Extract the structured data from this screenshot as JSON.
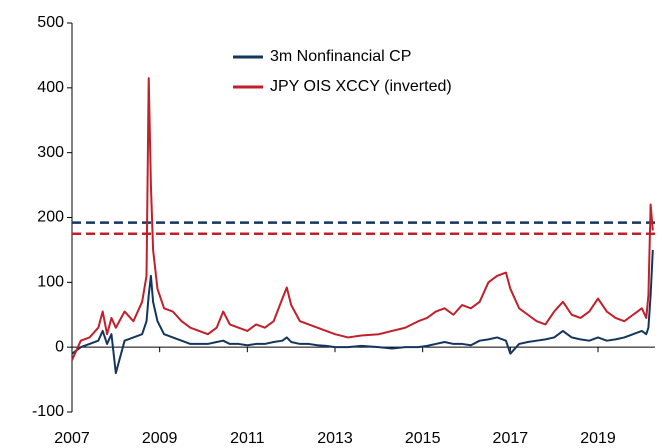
{
  "chart_data": {
    "type": "line",
    "x": [
      2007.0,
      2007.2,
      2007.4,
      2007.6,
      2007.7,
      2007.8,
      2007.9,
      2008.0,
      2008.2,
      2008.4,
      2008.6,
      2008.7,
      2008.75,
      2008.8,
      2008.85,
      2008.95,
      2009.1,
      2009.3,
      2009.5,
      2009.7,
      2009.9,
      2010.1,
      2010.3,
      2010.45,
      2010.6,
      2010.8,
      2011.0,
      2011.2,
      2011.4,
      2011.6,
      2011.8,
      2011.9,
      2012.0,
      2012.2,
      2012.4,
      2012.6,
      2012.8,
      2013.0,
      2013.3,
      2013.6,
      2014.0,
      2014.3,
      2014.6,
      2014.9,
      2015.1,
      2015.3,
      2015.5,
      2015.7,
      2015.9,
      2016.1,
      2016.3,
      2016.5,
      2016.7,
      2016.9,
      2017.0,
      2017.2,
      2017.4,
      2017.6,
      2017.8,
      2018.0,
      2018.2,
      2018.4,
      2018.6,
      2018.8,
      2019.0,
      2019.2,
      2019.4,
      2019.6,
      2019.8,
      2020.0,
      2020.1,
      2020.15,
      2020.2,
      2020.25
    ],
    "series": [
      {
        "name": "3m Nonfinancial CP",
        "color": "#14365e",
        "values": [
          -10,
          0,
          5,
          10,
          25,
          5,
          20,
          -40,
          10,
          15,
          20,
          40,
          80,
          110,
          70,
          40,
          20,
          15,
          10,
          5,
          5,
          5,
          8,
          10,
          5,
          5,
          3,
          5,
          5,
          8,
          10,
          15,
          8,
          5,
          5,
          3,
          2,
          0,
          0,
          2,
          0,
          -2,
          0,
          0,
          2,
          5,
          8,
          5,
          5,
          3,
          10,
          12,
          15,
          10,
          -10,
          5,
          8,
          10,
          12,
          15,
          25,
          15,
          12,
          10,
          15,
          10,
          12,
          15,
          20,
          25,
          20,
          30,
          80,
          150
        ]
      },
      {
        "name": "JPY OIS XCCY (inverted)",
        "color": "#c0202a",
        "values": [
          -20,
          10,
          15,
          30,
          55,
          20,
          45,
          30,
          55,
          40,
          70,
          110,
          415,
          250,
          150,
          90,
          60,
          55,
          40,
          30,
          25,
          20,
          30,
          55,
          35,
          30,
          25,
          35,
          30,
          40,
          75,
          92,
          65,
          40,
          35,
          30,
          25,
          20,
          15,
          18,
          20,
          25,
          30,
          40,
          45,
          55,
          60,
          50,
          65,
          60,
          70,
          100,
          110,
          115,
          90,
          60,
          50,
          40,
          35,
          55,
          70,
          50,
          45,
          55,
          75,
          55,
          45,
          40,
          50,
          60,
          45,
          80,
          220,
          180
        ]
      }
    ],
    "hlines": [
      {
        "value": 192,
        "color": "#14365e"
      },
      {
        "value": 175,
        "color": "#c0202a"
      }
    ],
    "xlim": [
      2007,
      2020.3
    ],
    "xticks": [
      2007,
      2009,
      2011,
      2013,
      2015,
      2017,
      2019
    ],
    "ylim": [
      -100,
      500
    ],
    "yticks": [
      -100,
      0,
      100,
      200,
      300,
      400,
      500
    ],
    "legend": "upper center",
    "grid": false
  }
}
